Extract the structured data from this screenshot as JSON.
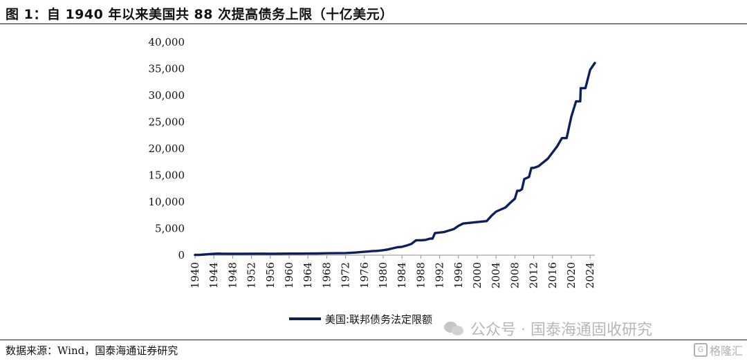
{
  "figure": {
    "title": "图 1：自 1940 年以来美国共 88 次提高债务上限（十亿美元）",
    "source": "数据来源：Wind，国泰海通证券研究",
    "watermark": "公众号 · 国泰海通固收研究",
    "brand": "格隆汇",
    "line_color": "#0d1f5c"
  },
  "chart_data": {
    "type": "line",
    "title": "",
    "xlabel": "",
    "ylabel": "",
    "xlim": [
      1940,
      2025
    ],
    "ylim": [
      0,
      40000
    ],
    "yticks": [
      0,
      5000,
      10000,
      15000,
      20000,
      25000,
      30000,
      35000,
      40000
    ],
    "ytick_labels": [
      "0",
      "5,000",
      "10,000",
      "15,000",
      "20,000",
      "25,000",
      "30,000",
      "35,000",
      "40,000"
    ],
    "xticks": [
      1940,
      1944,
      1948,
      1952,
      1956,
      1960,
      1964,
      1968,
      1972,
      1976,
      1980,
      1984,
      1988,
      1992,
      1996,
      2000,
      2004,
      2008,
      2012,
      2016,
      2020,
      2024
    ],
    "grid": false,
    "legend": "bottom-center",
    "series": [
      {
        "name": "美国:联邦债务法定限额",
        "color": "#0d1f5c",
        "x": [
          1940,
          1941,
          1942,
          1943,
          1944,
          1945,
          1946,
          1950,
          1954,
          1956,
          1958,
          1960,
          1962,
          1964,
          1966,
          1968,
          1970,
          1972,
          1974,
          1976,
          1977,
          1977.5,
          1978,
          1978.5,
          1979,
          1980,
          1981,
          1982,
          1983,
          1984,
          1985,
          1986,
          1987,
          1988,
          1989,
          1990,
          1990.5,
          1991,
          1993,
          1995,
          1996,
          1997,
          2002,
          2003,
          2004,
          2006,
          2007,
          2008,
          2008.5,
          2009,
          2009.5,
          2010,
          2011,
          2011.5,
          2012,
          2013,
          2015,
          2017,
          2018,
          2019,
          2020,
          2021,
          2021.9,
          2022,
          2023,
          2024,
          2025
        ],
        "values": [
          49,
          65,
          125,
          210,
          260,
          300,
          275,
          275,
          281,
          278,
          283,
          293,
          300,
          309,
          330,
          358,
          377,
          400,
          495,
          636,
          700,
          752,
          798,
          798,
          830,
          935,
          1079,
          1290,
          1490,
          1573,
          1824,
          2111,
          2800,
          2800,
          2870,
          3123,
          3123,
          4145,
          4370,
          4900,
          5500,
          5950,
          6400,
          7384,
          8184,
          8965,
          9815,
          10615,
          12104,
          12104,
          12394,
          14294,
          14694,
          16394,
          16394,
          16699,
          18113,
          20456,
          21988,
          21988,
          26000,
          28881,
          28881,
          31381,
          31381,
          34800,
          36100
        ]
      }
    ]
  }
}
